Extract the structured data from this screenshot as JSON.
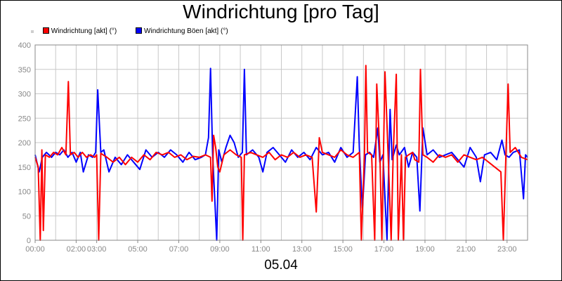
{
  "chart_data": {
    "type": "line",
    "title": "Windrichtung [pro Tag]",
    "xlabel": "05.04",
    "ylabel": "",
    "ylim": [
      0,
      400
    ],
    "yticks": [
      0,
      50,
      100,
      150,
      200,
      250,
      300,
      350,
      400
    ],
    "xlim": [
      0,
      24
    ],
    "xticks": [
      {
        "h": 0,
        "label": "00:00"
      },
      {
        "h": 2,
        "label": "02:00"
      },
      {
        "h": 3,
        "label": "03:00"
      },
      {
        "h": 5,
        "label": "05:00"
      },
      {
        "h": 7,
        "label": "07:00"
      },
      {
        "h": 9,
        "label": "09:00"
      },
      {
        "h": 11,
        "label": "11:00"
      },
      {
        "h": 13,
        "label": "13:00"
      },
      {
        "h": 15,
        "label": "15:00"
      },
      {
        "h": 17,
        "label": "17:00"
      },
      {
        "h": 19,
        "label": "19:00"
      },
      {
        "h": 21,
        "label": "21:00"
      },
      {
        "h": 23,
        "label": "23:00"
      }
    ],
    "grid": true,
    "legend_position": "top-left",
    "series": [
      {
        "name": "Windrichtung [akt] (°)",
        "color": "#ff0000",
        "points": [
          [
            0,
            170
          ],
          [
            0.15,
            150
          ],
          [
            0.25,
            0
          ],
          [
            0.33,
            185
          ],
          [
            0.4,
            20
          ],
          [
            0.5,
            175
          ],
          [
            0.7,
            170
          ],
          [
            0.9,
            180
          ],
          [
            1.1,
            175
          ],
          [
            1.3,
            190
          ],
          [
            1.5,
            175
          ],
          [
            1.62,
            325
          ],
          [
            1.72,
            175
          ],
          [
            1.9,
            180
          ],
          [
            2.1,
            170
          ],
          [
            2.3,
            180
          ],
          [
            2.5,
            170
          ],
          [
            2.7,
            175
          ],
          [
            2.9,
            170
          ],
          [
            3.0,
            175
          ],
          [
            3.1,
            0
          ],
          [
            3.2,
            178
          ],
          [
            3.5,
            170
          ],
          [
            3.8,
            160
          ],
          [
            4.1,
            170
          ],
          [
            4.4,
            155
          ],
          [
            4.7,
            170
          ],
          [
            5.0,
            160
          ],
          [
            5.3,
            175
          ],
          [
            5.6,
            165
          ],
          [
            5.9,
            180
          ],
          [
            6.2,
            175
          ],
          [
            6.5,
            180
          ],
          [
            6.8,
            170
          ],
          [
            7.1,
            175
          ],
          [
            7.4,
            165
          ],
          [
            7.7,
            172
          ],
          [
            8.0,
            170
          ],
          [
            8.3,
            175
          ],
          [
            8.55,
            170
          ],
          [
            8.62,
            80
          ],
          [
            8.7,
            215
          ],
          [
            8.8,
            190
          ],
          [
            8.9,
            150
          ],
          [
            9.0,
            140
          ],
          [
            9.2,
            175
          ],
          [
            9.5,
            185
          ],
          [
            9.8,
            175
          ],
          [
            10.05,
            170
          ],
          [
            10.12,
            0
          ],
          [
            10.2,
            175
          ],
          [
            10.5,
            180
          ],
          [
            10.8,
            175
          ],
          [
            11.1,
            170
          ],
          [
            11.4,
            180
          ],
          [
            11.7,
            165
          ],
          [
            12.0,
            175
          ],
          [
            12.3,
            170
          ],
          [
            12.6,
            180
          ],
          [
            12.9,
            170
          ],
          [
            13.2,
            175
          ],
          [
            13.5,
            170
          ],
          [
            13.7,
            58
          ],
          [
            13.85,
            210
          ],
          [
            14.0,
            180
          ],
          [
            14.3,
            175
          ],
          [
            14.6,
            170
          ],
          [
            14.9,
            185
          ],
          [
            15.2,
            175
          ],
          [
            15.5,
            170
          ],
          [
            15.8,
            180
          ],
          [
            15.9,
            0
          ],
          [
            16.05,
            175
          ],
          [
            16.12,
            358
          ],
          [
            16.2,
            180
          ],
          [
            16.4,
            175
          ],
          [
            16.55,
            0
          ],
          [
            16.65,
            320
          ],
          [
            16.8,
            180
          ],
          [
            16.9,
            0
          ],
          [
            17.05,
            345
          ],
          [
            17.2,
            180
          ],
          [
            17.35,
            0
          ],
          [
            17.45,
            175
          ],
          [
            17.6,
            340
          ],
          [
            17.7,
            0
          ],
          [
            17.85,
            175
          ],
          [
            17.95,
            0
          ],
          [
            18.05,
            170
          ],
          [
            18.2,
            175
          ],
          [
            18.4,
            180
          ],
          [
            18.5,
            165
          ],
          [
            18.7,
            160
          ],
          [
            18.78,
            350
          ],
          [
            18.9,
            175
          ],
          [
            19.1,
            170
          ],
          [
            19.4,
            160
          ],
          [
            19.7,
            175
          ],
          [
            20.0,
            170
          ],
          [
            20.3,
            175
          ],
          [
            20.6,
            160
          ],
          [
            20.9,
            175
          ],
          [
            21.2,
            170
          ],
          [
            21.5,
            165
          ],
          [
            21.8,
            170
          ],
          [
            22.1,
            160
          ],
          [
            22.4,
            150
          ],
          [
            22.7,
            140
          ],
          [
            22.82,
            0
          ],
          [
            22.95,
            180
          ],
          [
            23.05,
            320
          ],
          [
            23.15,
            180
          ],
          [
            23.4,
            190
          ],
          [
            23.7,
            170
          ],
          [
            24,
            165
          ]
        ]
      },
      {
        "name": "Windrichtung Böen [akt] (°)",
        "color": "#0000ff",
        "points": [
          [
            0,
            175
          ],
          [
            0.2,
            140
          ],
          [
            0.35,
            170
          ],
          [
            0.55,
            180
          ],
          [
            0.8,
            170
          ],
          [
            1.0,
            180
          ],
          [
            1.2,
            175
          ],
          [
            1.4,
            185
          ],
          [
            1.6,
            170
          ],
          [
            1.8,
            180
          ],
          [
            2.0,
            160
          ],
          [
            2.2,
            180
          ],
          [
            2.35,
            140
          ],
          [
            2.6,
            175
          ],
          [
            2.8,
            170
          ],
          [
            2.95,
            180
          ],
          [
            3.05,
            308
          ],
          [
            3.2,
            180
          ],
          [
            3.35,
            185
          ],
          [
            3.6,
            140
          ],
          [
            3.9,
            170
          ],
          [
            4.2,
            155
          ],
          [
            4.5,
            175
          ],
          [
            4.8,
            160
          ],
          [
            5.1,
            145
          ],
          [
            5.4,
            185
          ],
          [
            5.7,
            170
          ],
          [
            6.0,
            180
          ],
          [
            6.3,
            170
          ],
          [
            6.6,
            185
          ],
          [
            6.9,
            175
          ],
          [
            7.2,
            160
          ],
          [
            7.5,
            180
          ],
          [
            7.8,
            165
          ],
          [
            8.1,
            170
          ],
          [
            8.3,
            175
          ],
          [
            8.45,
            210
          ],
          [
            8.55,
            352
          ],
          [
            8.65,
            175
          ],
          [
            8.85,
            0
          ],
          [
            8.95,
            185
          ],
          [
            9.1,
            160
          ],
          [
            9.3,
            190
          ],
          [
            9.5,
            215
          ],
          [
            9.7,
            200
          ],
          [
            9.9,
            170
          ],
          [
            10.1,
            180
          ],
          [
            10.2,
            350
          ],
          [
            10.3,
            175
          ],
          [
            10.6,
            185
          ],
          [
            10.9,
            170
          ],
          [
            11.1,
            140
          ],
          [
            11.3,
            180
          ],
          [
            11.6,
            190
          ],
          [
            11.9,
            175
          ],
          [
            12.2,
            160
          ],
          [
            12.5,
            185
          ],
          [
            12.8,
            170
          ],
          [
            13.1,
            180
          ],
          [
            13.4,
            165
          ],
          [
            13.7,
            190
          ],
          [
            14.0,
            175
          ],
          [
            14.3,
            180
          ],
          [
            14.6,
            160
          ],
          [
            14.9,
            190
          ],
          [
            15.2,
            170
          ],
          [
            15.5,
            180
          ],
          [
            15.7,
            335
          ],
          [
            15.8,
            190
          ],
          [
            15.95,
            65
          ],
          [
            16.1,
            175
          ],
          [
            16.3,
            180
          ],
          [
            16.5,
            170
          ],
          [
            16.7,
            230
          ],
          [
            16.8,
            160
          ],
          [
            16.95,
            175
          ],
          [
            17.15,
            0
          ],
          [
            17.3,
            268
          ],
          [
            17.4,
            165
          ],
          [
            17.6,
            195
          ],
          [
            17.75,
            175
          ],
          [
            18.0,
            190
          ],
          [
            18.2,
            150
          ],
          [
            18.4,
            180
          ],
          [
            18.6,
            170
          ],
          [
            18.75,
            60
          ],
          [
            18.9,
            230
          ],
          [
            19.1,
            175
          ],
          [
            19.4,
            185
          ],
          [
            19.7,
            170
          ],
          [
            20.0,
            175
          ],
          [
            20.3,
            180
          ],
          [
            20.6,
            165
          ],
          [
            20.9,
            150
          ],
          [
            21.2,
            190
          ],
          [
            21.5,
            170
          ],
          [
            21.7,
            120
          ],
          [
            21.9,
            175
          ],
          [
            22.2,
            180
          ],
          [
            22.5,
            165
          ],
          [
            22.75,
            205
          ],
          [
            22.9,
            175
          ],
          [
            23.1,
            170
          ],
          [
            23.3,
            180
          ],
          [
            23.6,
            185
          ],
          [
            23.8,
            85
          ],
          [
            23.9,
            175
          ],
          [
            24,
            170
          ]
        ]
      }
    ]
  }
}
